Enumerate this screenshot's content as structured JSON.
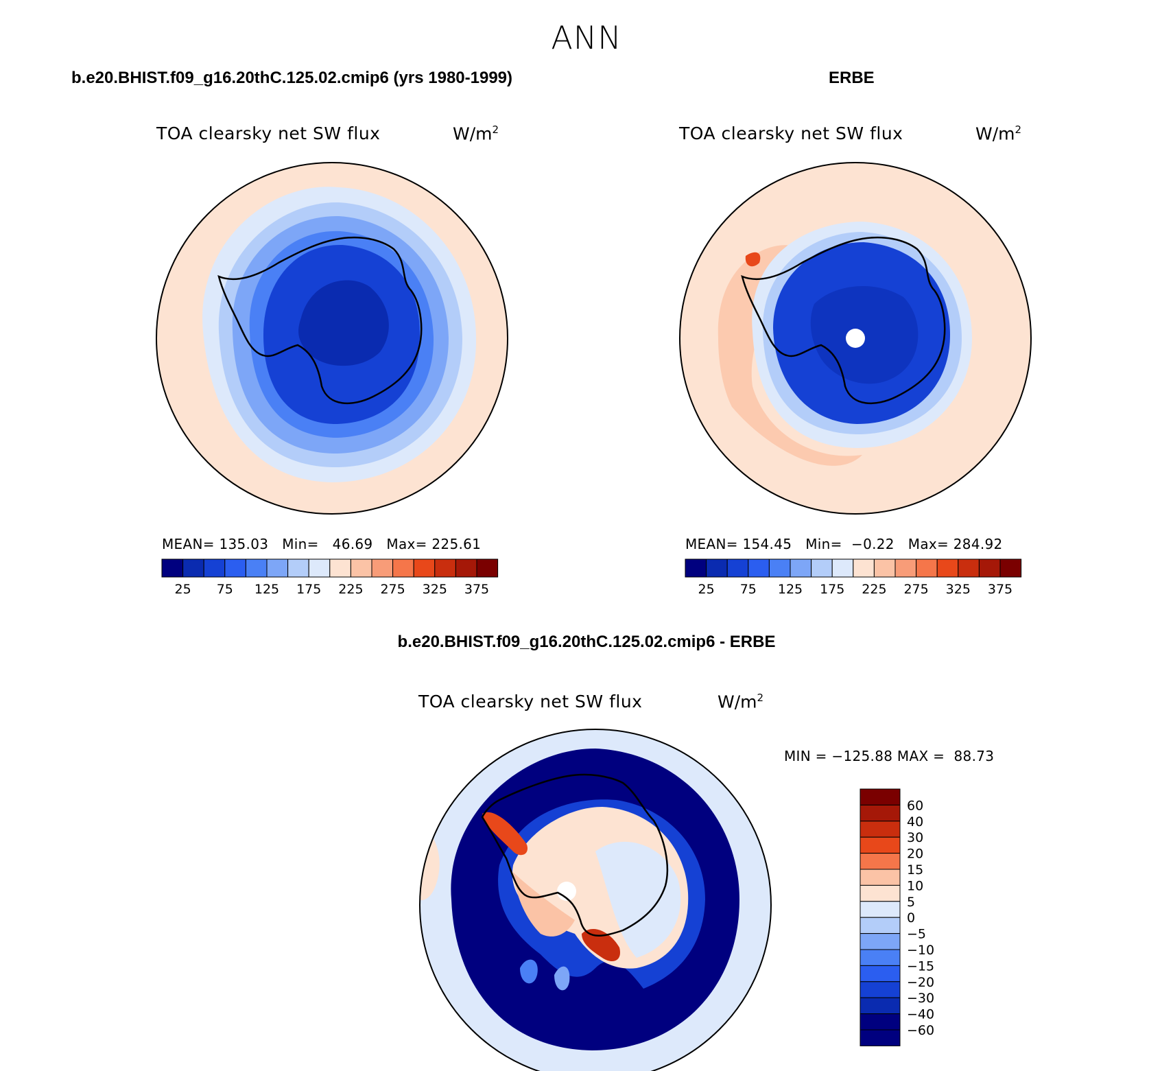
{
  "figure": {
    "season": "ANN",
    "variable_title": "TOA clearsky net SW flux",
    "units_text": "W/m",
    "units_sup": "2"
  },
  "panels": {
    "model": {
      "title": "b.e20.BHIST.f09_g16.20thC.125.02.cmip6 (yrs 1980-1999)",
      "stats": {
        "mean_label": "MEAN=",
        "mean": "135.03",
        "min_label": "Min=",
        "min": "46.69",
        "max_label": "Max=",
        "max": "225.61"
      }
    },
    "obs": {
      "title": "ERBE",
      "stats": {
        "mean_label": "MEAN=",
        "mean": "154.45",
        "min_label": "Min=",
        "min": "−0.22",
        "max_label": "Max=",
        "max": "284.92"
      }
    },
    "diff": {
      "title": "b.e20.BHIST.f09_g16.20thC.125.02.cmip6 - ERBE",
      "stats": {
        "min_label": "MIN =",
        "min": "−125.88",
        "max_label": "MAX =",
        "max": "88.73"
      }
    }
  },
  "colors": {
    "abs_palette": [
      "#00007f",
      "#0a2bb0",
      "#1541d4",
      "#2b5ef0",
      "#4a80f5",
      "#7da6f7",
      "#b3cdf9",
      "#dde9fb",
      "#fde3d2",
      "#fbc3a6",
      "#f89c78",
      "#f5764a",
      "#e8481a",
      "#c92e0e",
      "#a51808",
      "#7a0000"
    ],
    "diff_palette": [
      "#00007f",
      "#0a2bb0",
      "#1541d4",
      "#2b5ef0",
      "#4a80f5",
      "#7da6f7",
      "#b3cdf9",
      "#dde9fb",
      "#fde3d2",
      "#fbc3a6",
      "#f5764a",
      "#e8481a",
      "#c92e0e",
      "#a51808",
      "#7a0000"
    ]
  },
  "chart_data": [
    {
      "type": "heatmap",
      "name": "model",
      "projection": "south-polar-stereographic",
      "title": "b.e20.BHIST.f09_g16.20thC.125.02.cmip6 (yrs 1980-1999)",
      "colorbar_labels": [
        "25",
        "75",
        "125",
        "175",
        "225",
        "275",
        "325",
        "375"
      ],
      "colorbar_levels": [
        25,
        50,
        75,
        100,
        125,
        150,
        175,
        200,
        225,
        250,
        275,
        300,
        325,
        350,
        375
      ],
      "mean": 135.03,
      "min": 46.69,
      "max": 225.61
    },
    {
      "type": "heatmap",
      "name": "obs",
      "projection": "south-polar-stereographic",
      "title": "ERBE",
      "colorbar_labels": [
        "25",
        "75",
        "125",
        "175",
        "225",
        "275",
        "325",
        "375"
      ],
      "colorbar_levels": [
        25,
        50,
        75,
        100,
        125,
        150,
        175,
        200,
        225,
        250,
        275,
        300,
        325,
        350,
        375
      ],
      "mean": 154.45,
      "min": -0.22,
      "max": 284.92
    },
    {
      "type": "heatmap",
      "name": "difference",
      "projection": "south-polar-stereographic",
      "title": "b.e20.BHIST.f09_g16.20thC.125.02.cmip6 - ERBE",
      "colorbar_labels": [
        "60",
        "40",
        "30",
        "20",
        "15",
        "10",
        "5",
        "0",
        "−5",
        "−10",
        "−15",
        "−20",
        "−30",
        "−40",
        "−60"
      ],
      "colorbar_levels": [
        60,
        40,
        30,
        20,
        15,
        10,
        5,
        0,
        -5,
        -10,
        -15,
        -20,
        -30,
        -40,
        -60
      ],
      "min": -125.88,
      "max": 88.73
    }
  ]
}
